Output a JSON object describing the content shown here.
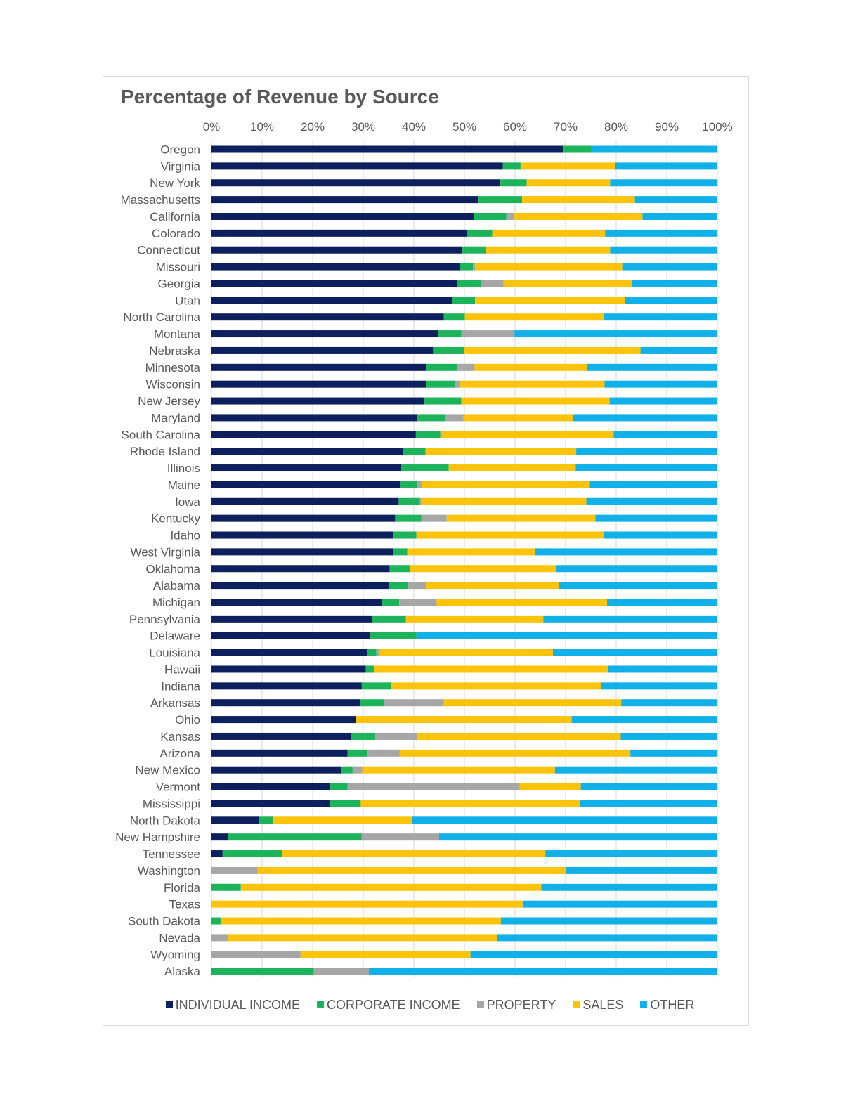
{
  "chart_data": {
    "type": "bar",
    "orientation": "horizontal",
    "stacked": "percent",
    "title": "Percentage of Revenue by Source",
    "xlim": [
      0,
      100
    ],
    "x_ticks": [
      "0%",
      "10%",
      "20%",
      "30%",
      "40%",
      "50%",
      "60%",
      "70%",
      "80%",
      "90%",
      "100%"
    ],
    "grid": true,
    "legend_position": "bottom",
    "categories": [
      "Oregon",
      "Virginia",
      "New York",
      "Massachusetts",
      "California",
      "Colorado",
      "Connecticut",
      "Missouri",
      "Georgia",
      "Utah",
      "North Carolina",
      "Montana",
      "Nebraska",
      "Minnesota",
      "Wisconsin",
      "New Jersey",
      "Maryland",
      "South Carolina",
      "Rhode Island",
      "Illinois",
      "Maine",
      "Iowa",
      "Kentucky",
      "Idaho",
      "West Virginia",
      "Oklahoma",
      "Alabama",
      "Michigan",
      "Pennsylvania",
      "Delaware",
      "Louisiana",
      "Hawaii",
      "Indiana",
      "Arkansas",
      "Ohio",
      "Kansas",
      "Arizona",
      "New Mexico",
      "Vermont",
      "Mississippi",
      "North Dakota",
      "New Hampshire",
      "Tennessee",
      "Washington",
      "Florida",
      "Texas",
      "South Dakota",
      "Nevada",
      "Wyoming",
      "Alaska"
    ],
    "series": [
      {
        "name": "INDIVIDUAL INCOME",
        "color": "#0d1f5c",
        "values": [
          69.6,
          57.6,
          57.1,
          52.8,
          51.9,
          50.6,
          49.6,
          49.1,
          48.6,
          47.5,
          45.9,
          44.8,
          43.8,
          42.5,
          42.4,
          42.1,
          40.7,
          40.4,
          37.8,
          37.5,
          37.4,
          37.0,
          36.3,
          36.0,
          35.9,
          35.2,
          35.1,
          33.7,
          31.8,
          31.4,
          30.8,
          30.5,
          29.7,
          29.4,
          28.5,
          27.5,
          26.9,
          25.7,
          23.5,
          23.4,
          9.4,
          3.3,
          2.2,
          0,
          0,
          0,
          0,
          0,
          0,
          0
        ]
      },
      {
        "name": "CORPORATE INCOME",
        "color": "#1db35a",
        "values": [
          5.4,
          3.5,
          5.2,
          8.6,
          6.4,
          4.9,
          4.7,
          2.6,
          4.7,
          4.6,
          4.2,
          4.6,
          6.1,
          6.1,
          5.7,
          7.3,
          5.5,
          4.8,
          4.5,
          9.4,
          3.3,
          4.2,
          5.2,
          4.5,
          2.8,
          4.0,
          3.8,
          3.4,
          6.6,
          9.1,
          1.8,
          1.6,
          5.8,
          4.7,
          0,
          4.9,
          3.9,
          2.2,
          3.4,
          6.1,
          2.8,
          26.4,
          11.7,
          0,
          5.8,
          0,
          1.8,
          0,
          0,
          20.2
        ]
      },
      {
        "name": "PROPERTY",
        "color": "#a6a6a6",
        "values": [
          0,
          0,
          0,
          0,
          1.6,
          0,
          0,
          0.4,
          4.4,
          0,
          0,
          10.5,
          0,
          3.4,
          1.1,
          0,
          3.6,
          0.3,
          0,
          0,
          0.9,
          0.3,
          5.0,
          0,
          0,
          0,
          3.5,
          7.4,
          0,
          0,
          0.7,
          0,
          0,
          11.8,
          0,
          8.2,
          6.4,
          1.9,
          34.0,
          0,
          0,
          15.3,
          0,
          9.1,
          0,
          0,
          0,
          3.3,
          17.6,
          10.9
        ]
      },
      {
        "name": "SALES",
        "color": "#fcc30b",
        "values": [
          0,
          18.7,
          16.5,
          22.3,
          25.3,
          22.3,
          24.5,
          29.1,
          25.4,
          29.6,
          27.4,
          0,
          34.9,
          22.2,
          28.5,
          29.3,
          21.6,
          34.0,
          29.8,
          25.1,
          33.2,
          32.6,
          29.4,
          37.0,
          25.2,
          29.0,
          26.3,
          33.7,
          27.2,
          0,
          34.2,
          46.3,
          41.5,
          35.1,
          42.7,
          40.3,
          45.6,
          38.1,
          12.1,
          43.3,
          27.4,
          0,
          52.1,
          61.0,
          59.4,
          61.5,
          55.4,
          53.2,
          33.6,
          0
        ]
      },
      {
        "name": "OTHER",
        "color": "#12b0e8",
        "values": [
          25.0,
          20.2,
          21.2,
          16.3,
          14.8,
          22.2,
          21.2,
          18.8,
          16.9,
          18.3,
          22.5,
          40.1,
          15.2,
          25.8,
          22.3,
          21.3,
          28.6,
          20.5,
          27.9,
          28.0,
          25.2,
          25.9,
          24.1,
          22.5,
          36.1,
          31.8,
          31.3,
          21.8,
          34.4,
          59.5,
          32.5,
          21.6,
          23.0,
          19.0,
          28.8,
          19.1,
          17.2,
          32.1,
          27.0,
          27.2,
          60.4,
          55.0,
          34.0,
          29.9,
          34.8,
          38.5,
          42.8,
          43.5,
          48.8,
          68.9
        ]
      }
    ]
  }
}
